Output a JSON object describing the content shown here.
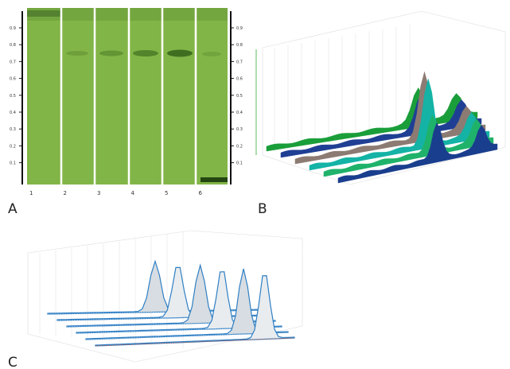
{
  "panels": [
    "A",
    "B",
    "C"
  ],
  "lanes": [
    "1",
    "2",
    "3",
    "4",
    "5",
    "6"
  ],
  "rf_ticks": [
    "0.9",
    "0.8",
    "0.7",
    "0.6",
    "0.5",
    "0.4",
    "0.3",
    "0.2",
    "0.1"
  ]
}
